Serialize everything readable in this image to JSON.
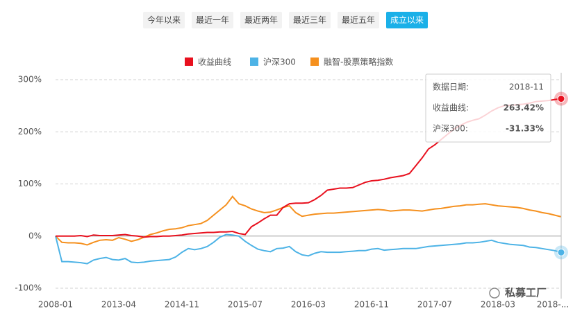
{
  "tabs": {
    "items": [
      "今年以来",
      "最近一年",
      "最近两年",
      "最近三年",
      "最近五年",
      "成立以来"
    ],
    "active": 5
  },
  "chart_data": {
    "type": "line",
    "categories": [
      "2008-01",
      null,
      null,
      null,
      null,
      null,
      null,
      null,
      null,
      null,
      "2013-04",
      null,
      null,
      null,
      null,
      null,
      null,
      null,
      null,
      null,
      "2014-11",
      null,
      null,
      null,
      null,
      null,
      null,
      null,
      null,
      null,
      "2015-07",
      null,
      null,
      null,
      null,
      null,
      null,
      null,
      null,
      null,
      "2016-03",
      null,
      null,
      null,
      null,
      null,
      null,
      null,
      null,
      null,
      "2016-11",
      null,
      null,
      null,
      null,
      null,
      null,
      null,
      null,
      null,
      "2017-07",
      null,
      null,
      null,
      null,
      null,
      null,
      null,
      null,
      null,
      "2018-03",
      null,
      null,
      null,
      null,
      null,
      null,
      null,
      null,
      null,
      "2018-..."
    ],
    "series": [
      {
        "name": "收益曲线",
        "color": "#e8101e",
        "values": [
          0,
          0,
          0,
          0,
          1,
          -1,
          2,
          1,
          1,
          1,
          2,
          3,
          1,
          0,
          -2,
          -1,
          -1,
          0,
          0,
          1,
          2,
          4,
          5,
          6,
          7,
          7,
          8,
          8,
          9,
          5,
          3,
          18,
          25,
          33,
          40,
          40,
          55,
          62,
          63,
          63,
          64,
          70,
          78,
          88,
          90,
          92,
          92,
          93,
          98,
          103,
          106,
          107,
          109,
          112,
          114,
          116,
          120,
          135,
          150,
          167,
          175,
          185,
          195,
          205,
          212,
          218,
          222,
          225,
          232,
          240,
          246,
          250,
          251,
          252,
          253,
          255,
          258,
          259,
          260,
          262,
          263.42
        ]
      },
      {
        "name": "沪深300",
        "color": "#4db3e6",
        "values": [
          0,
          -49,
          -49,
          -50,
          -51,
          -53,
          -46,
          -43,
          -41,
          -45,
          -46,
          -43,
          -50,
          -51,
          -50,
          -48,
          -47,
          -46,
          -45,
          -40,
          -31,
          -24,
          -26,
          -24,
          -20,
          -12,
          -2,
          3,
          2,
          0,
          -10,
          -18,
          -25,
          -28,
          -30,
          -24,
          -23,
          -20,
          -30,
          -36,
          -38,
          -33,
          -30,
          -31,
          -31,
          -31,
          -30,
          -29,
          -28,
          -28,
          -25,
          -24,
          -27,
          -26,
          -25,
          -24,
          -24,
          -24,
          -22,
          -20,
          -19,
          -18,
          -17,
          -16,
          -15,
          -13,
          -13,
          -12,
          -10,
          -8,
          -12,
          -14,
          -16,
          -17,
          -18,
          -21,
          -22,
          -24,
          -26,
          -28,
          -31.33
        ]
      },
      {
        "name": "融智-股票策略指数",
        "color": "#f5901e",
        "values": [
          0,
          -12,
          -13,
          -13,
          -14,
          -17,
          -12,
          -8,
          -7,
          -8,
          -3,
          -6,
          -10,
          -7,
          -2,
          3,
          6,
          10,
          13,
          14,
          16,
          20,
          22,
          24,
          30,
          40,
          50,
          60,
          76,
          62,
          58,
          52,
          48,
          45,
          46,
          50,
          55,
          58,
          45,
          38,
          40,
          42,
          43,
          44,
          44,
          45,
          46,
          47,
          48,
          49,
          50,
          51,
          50,
          48,
          49,
          50,
          50,
          49,
          48,
          50,
          52,
          53,
          55,
          57,
          58,
          60,
          60,
          61,
          62,
          60,
          58,
          57,
          56,
          55,
          53,
          50,
          48,
          45,
          43,
          40,
          37
        ]
      }
    ],
    "ylim": [
      -100,
      300
    ],
    "yticks": [
      {
        "value": -100,
        "label": "-100%"
      },
      {
        "value": 0,
        "label": "0%"
      },
      {
        "value": 100,
        "label": "100%"
      },
      {
        "value": 200,
        "label": "200%"
      },
      {
        "value": 300,
        "label": "300%"
      }
    ],
    "grid": true,
    "legend": "top",
    "tooltip": {
      "date_label": "数据日期:",
      "date": "2018-11",
      "rows": [
        {
          "label": "收益曲线:",
          "value": 263.42,
          "value_label": "263.42%",
          "color": "#e8101e"
        },
        {
          "label": "沪深300:",
          "value": -31.33,
          "value_label": "-31.33%",
          "color": "#4db3e6"
        }
      ]
    }
  },
  "watermark": "私募工厂"
}
